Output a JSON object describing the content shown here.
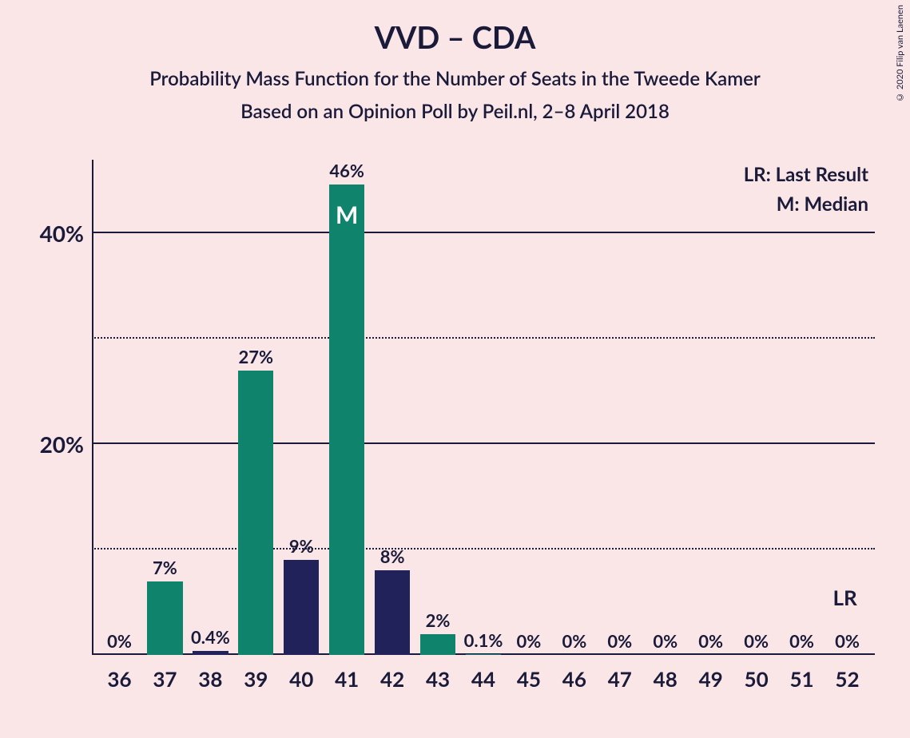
{
  "chart": {
    "type": "bar",
    "title": "VVD – CDA",
    "subtitle1": "Probability Mass Function for the Number of Seats in the Tweede Kamer",
    "subtitle2": "Based on an Opinion Poll by Peil.nl, 2–8 April 2018",
    "copyright": "© 2020 Filip van Laenen",
    "background_color": "#fae6e6",
    "text_color": "#1a1a3a",
    "grid_color": "#1a1a3a",
    "legend": {
      "lr": "LR: Last Result",
      "m": "M: Median"
    },
    "lr_axis_label": "LR",
    "title_fontsize": 38,
    "subtitle_fontsize": 24,
    "ymax": 47,
    "y_gridlines": [
      {
        "value": 10,
        "label": "",
        "style": "dotted"
      },
      {
        "value": 20,
        "label": "20%",
        "style": "solid"
      },
      {
        "value": 30,
        "label": "",
        "style": "dotted"
      },
      {
        "value": 40,
        "label": "40%",
        "style": "solid"
      }
    ],
    "colors": {
      "green": "#0f836b",
      "navy": "#22225a"
    },
    "median_marker": "M",
    "bars": [
      {
        "x": "36",
        "value": 0,
        "label": "0%",
        "color": "#0f836b",
        "marker": ""
      },
      {
        "x": "37",
        "value": 7,
        "label": "7%",
        "color": "#0f836b",
        "marker": ""
      },
      {
        "x": "38",
        "value": 0.4,
        "label": "0.4%",
        "color": "#22225a",
        "marker": ""
      },
      {
        "x": "39",
        "value": 27,
        "label": "27%",
        "color": "#0f836b",
        "marker": ""
      },
      {
        "x": "40",
        "value": 9,
        "label": "9%",
        "color": "#22225a",
        "marker": ""
      },
      {
        "x": "41",
        "value": 46,
        "label": "46%",
        "color": "#0f836b",
        "marker": "M"
      },
      {
        "x": "42",
        "value": 8,
        "label": "8%",
        "color": "#22225a",
        "marker": ""
      },
      {
        "x": "43",
        "value": 2,
        "label": "2%",
        "color": "#0f836b",
        "marker": ""
      },
      {
        "x": "44",
        "value": 0.1,
        "label": "0.1%",
        "color": "#0f836b",
        "marker": ""
      },
      {
        "x": "45",
        "value": 0,
        "label": "0%",
        "color": "#0f836b",
        "marker": ""
      },
      {
        "x": "46",
        "value": 0,
        "label": "0%",
        "color": "#0f836b",
        "marker": ""
      },
      {
        "x": "47",
        "value": 0,
        "label": "0%",
        "color": "#0f836b",
        "marker": ""
      },
      {
        "x": "48",
        "value": 0,
        "label": "0%",
        "color": "#0f836b",
        "marker": ""
      },
      {
        "x": "49",
        "value": 0,
        "label": "0%",
        "color": "#0f836b",
        "marker": ""
      },
      {
        "x": "50",
        "value": 0,
        "label": "0%",
        "color": "#0f836b",
        "marker": ""
      },
      {
        "x": "51",
        "value": 0,
        "label": "0%",
        "color": "#0f836b",
        "marker": ""
      },
      {
        "x": "52",
        "value": 0,
        "label": "0%",
        "color": "#0f836b",
        "marker": ""
      }
    ],
    "lr_position_x": "52"
  }
}
